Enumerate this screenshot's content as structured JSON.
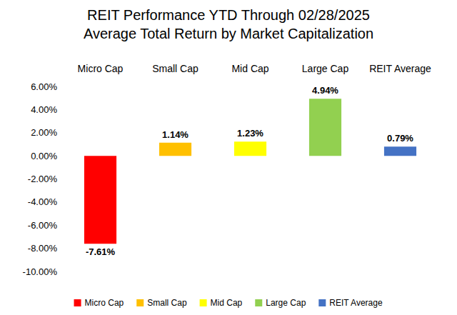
{
  "chart_data": {
    "type": "bar",
    "title": "REIT Performance YTD Through 02/28/2025",
    "subtitle": "Average Total Return by Market Capitalization",
    "categories": [
      "Micro Cap",
      "Small Cap",
      "Mid Cap",
      "Large Cap",
      "REIT Average"
    ],
    "values": [
      -7.61,
      1.14,
      1.23,
      4.94,
      0.79
    ],
    "value_labels": [
      "-7.61%",
      "1.14%",
      "1.23%",
      "4.94%",
      "0.79%"
    ],
    "colors": [
      "#ff0000",
      "#ffc000",
      "#ffff00",
      "#92d050",
      "#4472c4"
    ],
    "ylim": [
      -10,
      6
    ],
    "yticks": [
      {
        "value": -10,
        "label": "-10.00%"
      },
      {
        "value": -8,
        "label": "-8.00%"
      },
      {
        "value": -6,
        "label": "-6.00%"
      },
      {
        "value": -4,
        "label": "-4.00%"
      },
      {
        "value": -2,
        "label": "-2.00%"
      },
      {
        "value": 0,
        "label": "0.00%"
      },
      {
        "value": 2,
        "label": "2.00%"
      },
      {
        "value": 4,
        "label": "4.00%"
      },
      {
        "value": 6,
        "label": "6.00%"
      }
    ],
    "grid": false,
    "legend": "bottom",
    "data_labels": true
  }
}
